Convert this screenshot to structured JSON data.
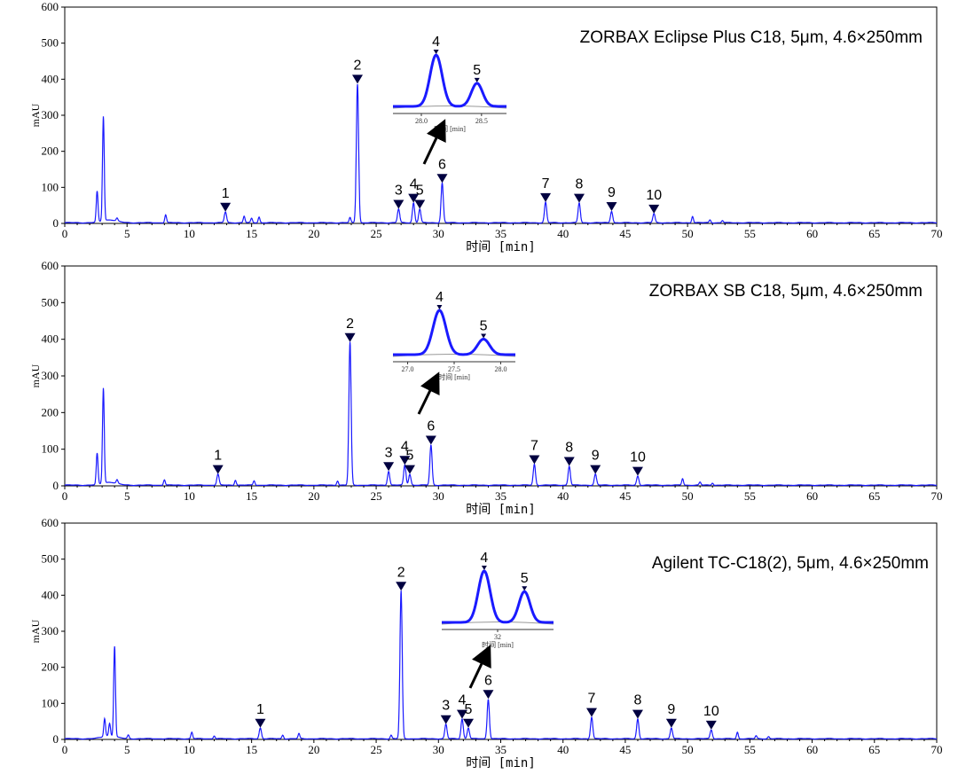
{
  "chart_data": [
    {
      "type": "line",
      "title": "ZORBAX Eclipse Plus C18,  5μm,  4.6×250mm",
      "xlabel": "时间 [min]",
      "ylabel": "mAU",
      "xlim": [
        0,
        70
      ],
      "ylim": [
        0,
        600
      ],
      "xticks": [
        0,
        5,
        10,
        15,
        20,
        25,
        30,
        35,
        40,
        45,
        50,
        55,
        60,
        65,
        70
      ],
      "yticks": [
        0,
        100,
        200,
        300,
        400,
        500,
        600
      ],
      "peaks": [
        {
          "label": "1",
          "x": 12.9,
          "y": 30
        },
        {
          "label": "2",
          "x": 23.5,
          "y": 385
        },
        {
          "label": "3",
          "x": 26.8,
          "y": 38
        },
        {
          "label": "4",
          "x": 28.0,
          "y": 55
        },
        {
          "label": "5",
          "x": 28.5,
          "y": 38
        },
        {
          "label": "6",
          "x": 30.3,
          "y": 110
        },
        {
          "label": "7",
          "x": 38.6,
          "y": 57
        },
        {
          "label": "8",
          "x": 41.3,
          "y": 55
        },
        {
          "label": "9",
          "x": 43.9,
          "y": 32
        },
        {
          "label": "10",
          "x": 47.3,
          "y": 25
        }
      ],
      "minor_peaks": [
        {
          "x": 2.6,
          "y": 85
        },
        {
          "x": 3.1,
          "y": 290
        },
        {
          "x": 4.2,
          "y": 8
        },
        {
          "x": 8.1,
          "y": 22
        },
        {
          "x": 14.4,
          "y": 18
        },
        {
          "x": 15.0,
          "y": 12
        },
        {
          "x": 15.6,
          "y": 16
        },
        {
          "x": 22.9,
          "y": 14
        },
        {
          "x": 50.4,
          "y": 18
        },
        {
          "x": 51.8,
          "y": 8
        },
        {
          "x": 52.8,
          "y": 6
        }
      ],
      "inset": {
        "xticks": [
          "28.0",
          "28.5"
        ],
        "xlabel": "时间 [min]",
        "peak_labels": [
          "4",
          "5"
        ],
        "peak_heights": [
          1.0,
          0.45
        ]
      }
    },
    {
      "type": "line",
      "title": "ZORBAX SB C18,  5μm,  4.6×250mm",
      "xlabel": "时间 [min]",
      "ylabel": "mAU",
      "xlim": [
        0,
        70
      ],
      "ylim": [
        0,
        600
      ],
      "xticks": [
        0,
        5,
        10,
        15,
        20,
        25,
        30,
        35,
        40,
        45,
        50,
        55,
        60,
        65,
        70
      ],
      "yticks": [
        0,
        100,
        200,
        300,
        400,
        500,
        600
      ],
      "peaks": [
        {
          "label": "1",
          "x": 12.3,
          "y": 30
        },
        {
          "label": "2",
          "x": 22.9,
          "y": 390
        },
        {
          "label": "3",
          "x": 26.0,
          "y": 38
        },
        {
          "label": "4",
          "x": 27.3,
          "y": 55
        },
        {
          "label": "5",
          "x": 27.7,
          "y": 30
        },
        {
          "label": "6",
          "x": 29.4,
          "y": 110
        },
        {
          "label": "7",
          "x": 37.7,
          "y": 57
        },
        {
          "label": "8",
          "x": 40.5,
          "y": 52
        },
        {
          "label": "9",
          "x": 42.6,
          "y": 30
        },
        {
          "label": "10",
          "x": 46.0,
          "y": 25
        }
      ],
      "minor_peaks": [
        {
          "x": 2.6,
          "y": 85
        },
        {
          "x": 3.1,
          "y": 260
        },
        {
          "x": 4.2,
          "y": 10
        },
        {
          "x": 8.0,
          "y": 15
        },
        {
          "x": 13.7,
          "y": 14
        },
        {
          "x": 15.2,
          "y": 12
        },
        {
          "x": 21.9,
          "y": 12
        },
        {
          "x": 49.6,
          "y": 18
        },
        {
          "x": 51.0,
          "y": 8
        },
        {
          "x": 52.0,
          "y": 6
        }
      ],
      "inset": {
        "xticks": [
          "27.0",
          "27.5",
          "28.0"
        ],
        "xlabel": "时间 [min]",
        "peak_labels": [
          "4",
          "5"
        ],
        "peak_heights": [
          1.0,
          0.35
        ]
      }
    },
    {
      "type": "line",
      "title": "Agilent TC-C18(2),  5μm,  4.6×250mm",
      "xlabel": "时间 [min]",
      "ylabel": "mAU",
      "xlim": [
        0,
        70
      ],
      "ylim": [
        0,
        600
      ],
      "xticks": [
        0,
        5,
        10,
        15,
        20,
        25,
        30,
        35,
        40,
        45,
        50,
        55,
        60,
        65,
        70
      ],
      "yticks": [
        0,
        100,
        200,
        300,
        400,
        500,
        600
      ],
      "peaks": [
        {
          "label": "1",
          "x": 15.7,
          "y": 30
        },
        {
          "label": "2",
          "x": 27.0,
          "y": 410
        },
        {
          "label": "3",
          "x": 30.6,
          "y": 40
        },
        {
          "label": "4",
          "x": 31.9,
          "y": 55
        },
        {
          "label": "5",
          "x": 32.4,
          "y": 30
        },
        {
          "label": "6",
          "x": 34.0,
          "y": 110
        },
        {
          "label": "7",
          "x": 42.3,
          "y": 60
        },
        {
          "label": "8",
          "x": 46.0,
          "y": 55
        },
        {
          "label": "9",
          "x": 48.7,
          "y": 30
        },
        {
          "label": "10",
          "x": 51.9,
          "y": 25
        }
      ],
      "minor_peaks": [
        {
          "x": 3.2,
          "y": 50
        },
        {
          "x": 3.6,
          "y": 35
        },
        {
          "x": 4.0,
          "y": 250
        },
        {
          "x": 5.1,
          "y": 10
        },
        {
          "x": 10.2,
          "y": 18
        },
        {
          "x": 12.0,
          "y": 8
        },
        {
          "x": 17.5,
          "y": 10
        },
        {
          "x": 18.8,
          "y": 14
        },
        {
          "x": 26.2,
          "y": 10
        },
        {
          "x": 54.0,
          "y": 18
        },
        {
          "x": 55.5,
          "y": 8
        },
        {
          "x": 56.5,
          "y": 6
        }
      ],
      "inset": {
        "xticks": [
          "32"
        ],
        "xlabel": "时间 [min]",
        "peak_labels": [
          "4",
          "5"
        ],
        "peak_heights": [
          1.0,
          0.6
        ]
      }
    }
  ],
  "colors": {
    "trace": "#1a1aff",
    "marker": "#000040",
    "axis": "#000000",
    "inset_baseline": "#999999"
  }
}
